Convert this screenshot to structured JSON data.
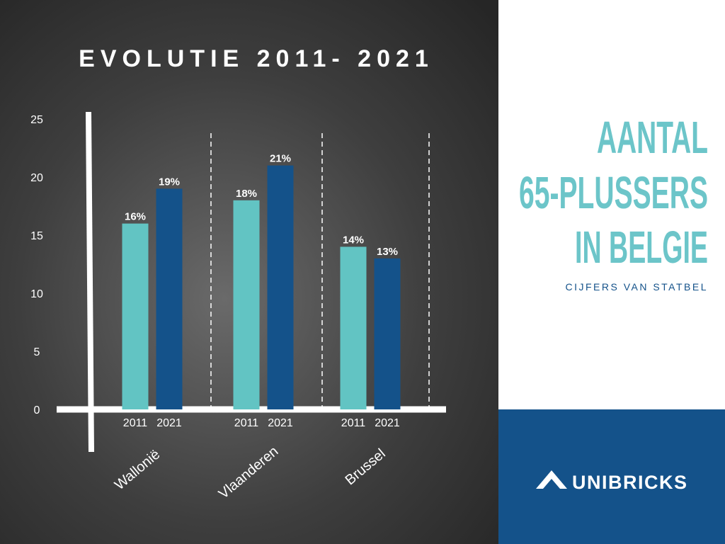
{
  "chart_data": {
    "type": "bar",
    "title": "EVOLUTIE 2011- 2021",
    "categories": [
      "Wallonië",
      "Vlaanderen",
      "Brussel"
    ],
    "series": [
      {
        "name": "2011",
        "color": "#62c4c3",
        "values": [
          16,
          18,
          14
        ],
        "value_labels": [
          "16%",
          "18%",
          "14%"
        ]
      },
      {
        "name": "2021",
        "color": "#14528a",
        "values": [
          19,
          21,
          13
        ],
        "value_labels": [
          "19%",
          "21%",
          "13%"
        ]
      }
    ],
    "ylim": [
      0,
      25
    ],
    "yticks": [
      0,
      5,
      10,
      15,
      20,
      25
    ]
  },
  "sidebar": {
    "heading": [
      "AANTAL",
      "65-PLUSSERS",
      "IN BELGIE"
    ],
    "subheading": "CIJFERS VAN STATBEL",
    "logo": "UNIBRICKS"
  }
}
